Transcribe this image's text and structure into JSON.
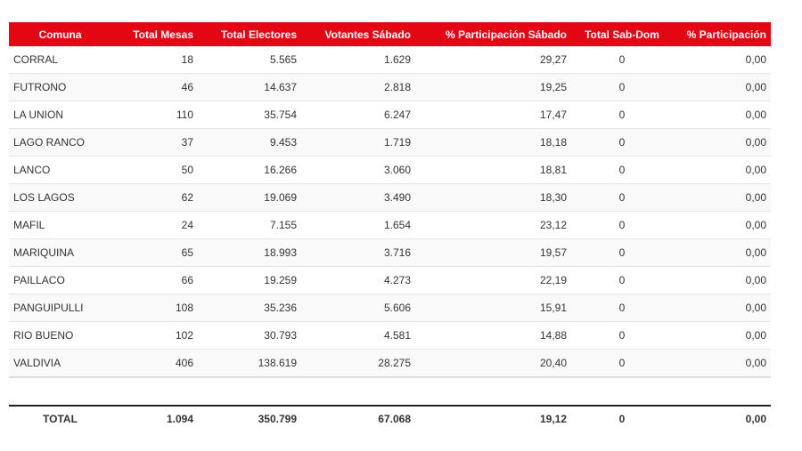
{
  "columns": [
    "Comuna",
    "Total Mesas",
    "Total Electores",
    "Votantes Sábado",
    "% Participación Sábado",
    "Total Sab-Dom",
    "% Participación"
  ],
  "rows": [
    [
      "CORRAL",
      "18",
      "5.565",
      "1.629",
      "29,27",
      "0",
      "0,00"
    ],
    [
      "FUTRONO",
      "46",
      "14.637",
      "2.818",
      "19,25",
      "0",
      "0,00"
    ],
    [
      "LA UNION",
      "110",
      "35.754",
      "6.247",
      "17,47",
      "0",
      "0,00"
    ],
    [
      "LAGO RANCO",
      "37",
      "9.453",
      "1.719",
      "18,18",
      "0",
      "0,00"
    ],
    [
      "LANCO",
      "50",
      "16.266",
      "3.060",
      "18,81",
      "0",
      "0,00"
    ],
    [
      "LOS LAGOS",
      "62",
      "19.069",
      "3.490",
      "18,30",
      "0",
      "0,00"
    ],
    [
      "MAFIL",
      "24",
      "7.155",
      "1.654",
      "23,12",
      "0",
      "0,00"
    ],
    [
      "MARIQUINA",
      "65",
      "18.993",
      "3.716",
      "19,57",
      "0",
      "0,00"
    ],
    [
      "PAILLACO",
      "66",
      "19.259",
      "4.273",
      "22,19",
      "0",
      "0,00"
    ],
    [
      "PANGUIPULLI",
      "108",
      "35.236",
      "5.606",
      "15,91",
      "0",
      "0,00"
    ],
    [
      "RIO BUENO",
      "102",
      "30.793",
      "4.581",
      "14,88",
      "0",
      "0,00"
    ],
    [
      "VALDIVIA",
      "406",
      "138.619",
      "28.275",
      "20,40",
      "0",
      "0,00"
    ]
  ],
  "total": [
    "TOTAL",
    "1.094",
    "350.799",
    "67.068",
    "19,12",
    "0",
    "0,00"
  ],
  "colors": {
    "header_bg": "#e30613",
    "header_text": "#ffffff"
  }
}
